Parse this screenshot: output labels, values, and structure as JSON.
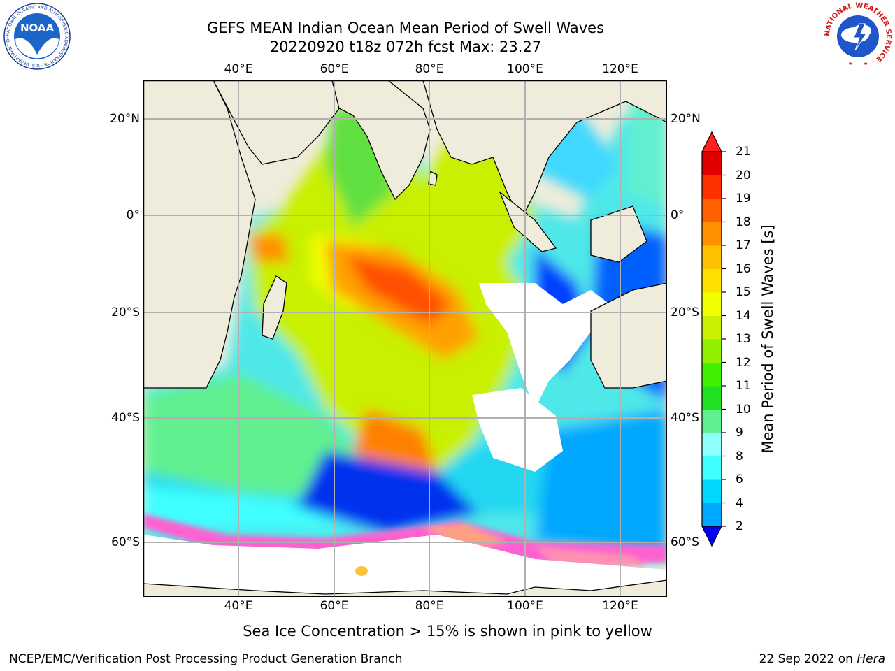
{
  "title": {
    "line1": "GEFS MEAN Indian Ocean Mean Period of Swell Waves",
    "line2": "20220920 t18z 072h fcst   Max: 23.27"
  },
  "map": {
    "lon_ticks": [
      "40°E",
      "60°E",
      "80°E",
      "100°E",
      "120°E"
    ],
    "lat_ticks": [
      "20°N",
      "0°",
      "20°S",
      "40°S",
      "60°S"
    ],
    "lon_range": [
      20,
      130
    ],
    "lat_range": [
      -68,
      28
    ]
  },
  "colorbar": {
    "label": "Mean Period of Swell Waves [s]",
    "ticks": [
      "2",
      "4",
      "6",
      "8",
      "9",
      "10",
      "11",
      "12",
      "13",
      "14",
      "15",
      "16",
      "17",
      "18",
      "19",
      "20",
      "21"
    ],
    "colors": [
      "#0030ff",
      "#00a8ff",
      "#00d8ff",
      "#40ffff",
      "#90ffff",
      "#60f090",
      "#20e020",
      "#40f000",
      "#90f000",
      "#c8f000",
      "#f0ff00",
      "#ffe000",
      "#ffc000",
      "#ff9000",
      "#ff6000",
      "#ff3000",
      "#e00000"
    ],
    "over_color": "#ff2020",
    "under_color": "#0000ee"
  },
  "caption": "Sea Ice Concentration > 15% is shown in pink to yellow",
  "footer": {
    "left": "NCEP/EMC/Verification Post Processing Product Generation Branch",
    "right_date": "22 Sep 2022 on ",
    "right_host": "Hera"
  },
  "logos": {
    "noaa_text": "NOAA",
    "noaa_ring": "NATIONAL OCEANIC AND ATMOSPHERIC ADMINISTRATION · U.S. DEPARTMENT OF COMMERCE",
    "nws_ring": "NATIONAL WEATHER SERVICE"
  }
}
